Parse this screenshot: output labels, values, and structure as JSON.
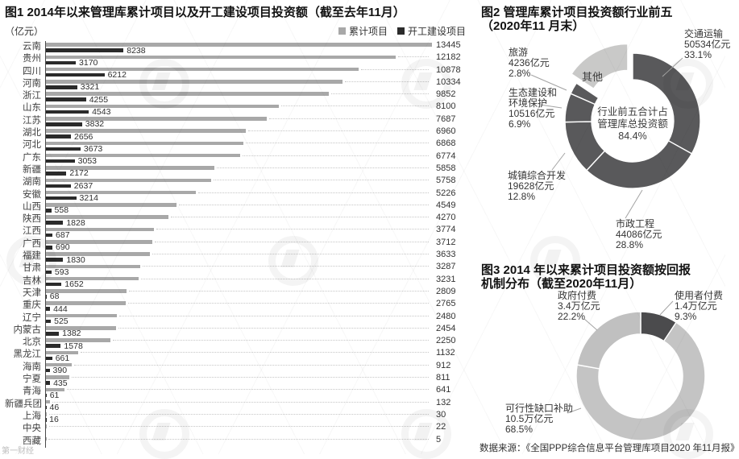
{
  "watermark": "第一财经",
  "source": "数据来源：《全国PPP综合信息平台管理库项目2020 年11月报》",
  "chart_data": [
    {
      "id": "fig1",
      "type": "bar",
      "orientation": "horizontal",
      "title": "图1 2014年以来管理库累计项目以及开工建设项目投资额（截至去年11月）",
      "unit_label": "（亿元）",
      "legend_position": "top-right",
      "grid": false,
      "cumulative_axis_max": 13445,
      "construction_axis_max": 41000,
      "note": "开工建设项目 bars are drawn at roughly 1/3 the pixel scale of 累计项目 bars, as in the original graphic; gray bar values listed in right column, dark bar values labeled beside bars",
      "categories": [
        "云南",
        "贵州",
        "四川",
        "河南",
        "浙江",
        "山东",
        "江苏",
        "湖北",
        "河北",
        "广东",
        "新疆",
        "湖南",
        "安徽",
        "山西",
        "陕西",
        "江西",
        "广西",
        "福建",
        "甘肃",
        "吉林",
        "天津",
        "重庆",
        "辽宁",
        "内蒙古",
        "北京",
        "黑龙江",
        "海南",
        "宁夏",
        "青海",
        "新疆兵团",
        "上海",
        "中央",
        "西藏"
      ],
      "series": [
        {
          "name": "累计项目",
          "color": "#a8a8a8",
          "values": [
            13445,
            12182,
            10878,
            10334,
            9852,
            8100,
            7687,
            6960,
            6868,
            6774,
            5858,
            5758,
            5226,
            4549,
            4270,
            3774,
            3712,
            3633,
            3287,
            3231,
            2809,
            2765,
            2480,
            2454,
            2250,
            1132,
            912,
            811,
            641,
            132,
            30,
            22,
            5
          ]
        },
        {
          "name": "开工建设项目",
          "color": "#2b2b2b",
          "values": [
            8238,
            3170,
            6212,
            3321,
            4255,
            4543,
            3832,
            2656,
            3673,
            3053,
            2172,
            2637,
            3214,
            558,
            1828,
            687,
            690,
            1830,
            593,
            1652,
            68,
            444,
            525,
            1382,
            1578,
            661,
            390,
            435,
            61,
            46,
            16,
            null,
            null
          ]
        }
      ]
    },
    {
      "id": "fig2",
      "type": "pie",
      "title_lines": [
        "图2 管理库累计项目投资额行业前五",
        "（2020年11 月末）"
      ],
      "center_lines": [
        "行业前五合计占",
        "管理库总投资额",
        "84.4%"
      ],
      "segments": [
        {
          "name": "交通运输",
          "amount": "50534亿元",
          "pct": "33.1%",
          "value": 33.1,
          "color": "#59595b",
          "exploded": false
        },
        {
          "name": "市政工程",
          "amount": "44086亿元",
          "pct": "28.8%",
          "value": 28.8,
          "color": "#59595b",
          "exploded": false
        },
        {
          "name": "城镇综合开发",
          "amount": "19628亿元",
          "pct": "12.8%",
          "value": 12.8,
          "color": "#59595b",
          "exploded": false
        },
        {
          "name": "生态建设和环境保护",
          "amount": "10516亿元",
          "pct": "6.9%",
          "value": 6.9,
          "color": "#59595b",
          "exploded": false
        },
        {
          "name": "旅游",
          "amount": "4236亿元",
          "pct": "2.8%",
          "value": 2.8,
          "color": "#59595b",
          "exploded": false
        },
        {
          "name": "其他",
          "amount": "",
          "pct": "",
          "value": 15.6,
          "color": "#c9c9c8",
          "exploded": true
        }
      ]
    },
    {
      "id": "fig3",
      "type": "pie",
      "title_lines": [
        "图3 2014 年以来累计项目投资额按回报",
        "机制分布（截至2020年11月）"
      ],
      "segments": [
        {
          "name": "使用者付费",
          "amount": "1.4万亿元",
          "pct": "9.3%",
          "value": 9.3,
          "color": "#4b4b4d",
          "exploded": false
        },
        {
          "name": "可行性缺口补助",
          "amount": "10.5万亿元",
          "pct": "68.5%",
          "value": 68.5,
          "color": "#c4c4c4",
          "exploded": false
        },
        {
          "name": "政府付费",
          "amount": "3.4万亿元",
          "pct": "22.2%",
          "value": 22.2,
          "color": "#c0c0c0",
          "exploded": false
        }
      ]
    }
  ]
}
